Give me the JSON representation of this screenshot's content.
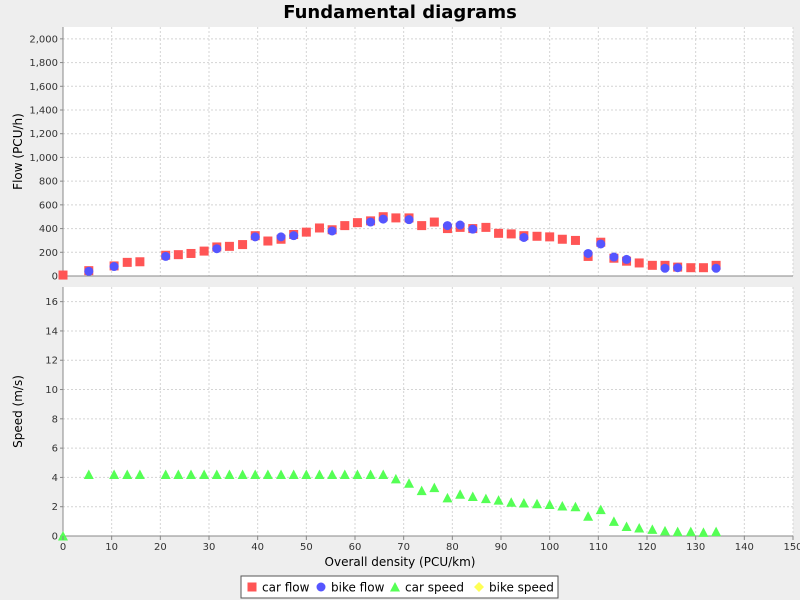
{
  "chart_data": {
    "type": "scatter",
    "title": "Fundamental diagrams",
    "xlabel": "Overall density (PCU/km)",
    "xlim": [
      0,
      150
    ],
    "xticks": [
      0,
      10,
      20,
      30,
      40,
      50,
      60,
      70,
      80,
      90,
      100,
      110,
      120,
      130,
      140,
      150
    ],
    "grid": true,
    "legend_position": "bottom",
    "colors": {
      "car_flow": "#ff5555",
      "bike_flow": "#5555ff",
      "car_speed": "#55ff55",
      "bike_speed": "#ffff55"
    },
    "legend": [
      {
        "label": "car flow",
        "marker": "square",
        "color": "#ff5555"
      },
      {
        "label": "bike flow",
        "marker": "circle",
        "color": "#5555ff"
      },
      {
        "label": "car speed",
        "marker": "triangle",
        "color": "#55ff55"
      },
      {
        "label": "bike speed",
        "marker": "diamond",
        "color": "#ffff55"
      }
    ],
    "panels": [
      {
        "id": "flow",
        "ylabel": "Flow (PCU/h)",
        "ylim": [
          0,
          2100
        ],
        "yticks": [
          0,
          200,
          400,
          600,
          800,
          1000,
          1200,
          1400,
          1600,
          1800,
          2000
        ],
        "ytick_labels": [
          "0",
          "200",
          "400",
          "600",
          "800",
          "1,000",
          "1,200",
          "1,400",
          "1,600",
          "1,800",
          "2,000"
        ],
        "series": [
          {
            "name": "car flow",
            "marker": "square",
            "color": "#ff5555",
            "points": [
              [
                0,
                8
              ],
              [
                5.3,
                45
              ],
              [
                10.5,
                85
              ],
              [
                13.2,
                115
              ],
              [
                15.8,
                120
              ],
              [
                21.1,
                175
              ],
              [
                23.7,
                180
              ],
              [
                26.3,
                190
              ],
              [
                29,
                210
              ],
              [
                31.6,
                245
              ],
              [
                34.2,
                250
              ],
              [
                36.9,
                265
              ],
              [
                39.5,
                340
              ],
              [
                42.1,
                295
              ],
              [
                44.8,
                310
              ],
              [
                47.4,
                350
              ],
              [
                50,
                370
              ],
              [
                52.7,
                405
              ],
              [
                55.3,
                390
              ],
              [
                57.9,
                425
              ],
              [
                60.5,
                450
              ],
              [
                63.2,
                465
              ],
              [
                65.8,
                500
              ],
              [
                68.4,
                490
              ],
              [
                71.1,
                490
              ],
              [
                73.7,
                425
              ],
              [
                76.3,
                455
              ],
              [
                79,
                400
              ],
              [
                81.6,
                410
              ],
              [
                84.2,
                400
              ],
              [
                86.9,
                410
              ],
              [
                89.5,
                360
              ],
              [
                92.1,
                355
              ],
              [
                94.7,
                340
              ],
              [
                97.4,
                335
              ],
              [
                100,
                330
              ],
              [
                102.6,
                310
              ],
              [
                105.3,
                300
              ],
              [
                107.9,
                165
              ],
              [
                110.5,
                285
              ],
              [
                113.2,
                150
              ],
              [
                115.8,
                125
              ],
              [
                118.4,
                110
              ],
              [
                121.1,
                90
              ],
              [
                123.7,
                90
              ],
              [
                126.3,
                75
              ],
              [
                129,
                70
              ],
              [
                131.6,
                70
              ],
              [
                134.2,
                90
              ]
            ]
          },
          {
            "name": "bike flow",
            "marker": "circle",
            "color": "#5555ff",
            "points": [
              [
                5.3,
                40
              ],
              [
                10.5,
                80
              ],
              [
                21.1,
                165
              ],
              [
                31.6,
                230
              ],
              [
                39.5,
                330
              ],
              [
                44.8,
                330
              ],
              [
                47.4,
                340
              ],
              [
                55.3,
                380
              ],
              [
                63.2,
                455
              ],
              [
                65.8,
                480
              ],
              [
                71.1,
                475
              ],
              [
                79,
                425
              ],
              [
                81.6,
                430
              ],
              [
                84.2,
                395
              ],
              [
                94.7,
                325
              ],
              [
                107.9,
                190
              ],
              [
                110.5,
                270
              ],
              [
                113.2,
                160
              ],
              [
                115.8,
                140
              ],
              [
                123.7,
                65
              ],
              [
                126.3,
                70
              ],
              [
                134.2,
                65
              ]
            ]
          },
          {
            "name": "bike speed",
            "marker": "diamond",
            "color": "#ffff55",
            "points": []
          }
        ]
      },
      {
        "id": "speed",
        "ylabel": "Speed (m/s)",
        "ylim": [
          0,
          17
        ],
        "yticks": [
          0,
          2,
          4,
          6,
          8,
          10,
          12,
          14,
          16
        ],
        "ytick_labels": [
          "0",
          "2",
          "4",
          "6",
          "8",
          "10",
          "12",
          "14",
          "16"
        ],
        "series": [
          {
            "name": "car speed",
            "marker": "triangle",
            "color": "#55ff55",
            "points": [
              [
                0,
                0
              ],
              [
                5.3,
                4.2
              ],
              [
                10.5,
                4.2
              ],
              [
                13.2,
                4.2
              ],
              [
                15.8,
                4.2
              ],
              [
                21.1,
                4.2
              ],
              [
                23.7,
                4.2
              ],
              [
                26.3,
                4.2
              ],
              [
                29,
                4.2
              ],
              [
                31.6,
                4.2
              ],
              [
                34.2,
                4.2
              ],
              [
                36.9,
                4.2
              ],
              [
                39.5,
                4.2
              ],
              [
                42.1,
                4.2
              ],
              [
                44.8,
                4.2
              ],
              [
                47.4,
                4.2
              ],
              [
                50,
                4.2
              ],
              [
                52.7,
                4.2
              ],
              [
                55.3,
                4.2
              ],
              [
                57.9,
                4.2
              ],
              [
                60.5,
                4.2
              ],
              [
                63.2,
                4.2
              ],
              [
                65.8,
                4.2
              ],
              [
                68.4,
                3.9
              ],
              [
                71.1,
                3.6
              ],
              [
                73.7,
                3.1
              ],
              [
                76.3,
                3.3
              ],
              [
                79,
                2.6
              ],
              [
                81.6,
                2.85
              ],
              [
                84.2,
                2.7
              ],
              [
                86.9,
                2.55
              ],
              [
                89.5,
                2.45
              ],
              [
                92.1,
                2.3
              ],
              [
                94.7,
                2.25
              ],
              [
                97.4,
                2.2
              ],
              [
                100,
                2.15
              ],
              [
                102.6,
                2.05
              ],
              [
                105.3,
                2.0
              ],
              [
                107.9,
                1.35
              ],
              [
                110.5,
                1.8
              ],
              [
                113.2,
                1.0
              ],
              [
                115.8,
                0.65
              ],
              [
                118.4,
                0.55
              ],
              [
                121.1,
                0.45
              ],
              [
                123.7,
                0.35
              ],
              [
                126.3,
                0.3
              ],
              [
                129,
                0.3
              ],
              [
                131.6,
                0.25
              ],
              [
                134.2,
                0.3
              ]
            ]
          },
          {
            "name": "bike speed",
            "marker": "diamond",
            "color": "#ffff55",
            "points": []
          }
        ]
      }
    ]
  }
}
